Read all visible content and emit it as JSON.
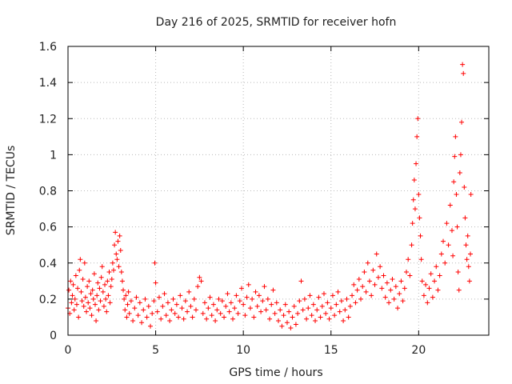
{
  "chart_data": {
    "type": "scatter",
    "title": "Day 216 of 2025, SRMTID for receiver hofn",
    "xlabel": "GPS time / hours",
    "ylabel": "SRMTID / TECUs",
    "xlim": [
      0,
      24
    ],
    "ylim": [
      0,
      1.6
    ],
    "x_ticks": [
      0,
      5,
      10,
      15,
      20
    ],
    "x_tick_labels": [
      "0",
      "5",
      "10",
      "15",
      "20"
    ],
    "y_ticks": [
      0,
      0.2,
      0.4,
      0.6,
      0.8,
      1.0,
      1.2,
      1.4,
      1.6
    ],
    "y_tick_labels": [
      "0",
      "0.2",
      "0.4",
      "0.6",
      "0.8",
      "1",
      "1.2",
      "1.4",
      "1.6"
    ],
    "grid": true,
    "marker": "+",
    "color": "#ff0000",
    "series": [
      {
        "name": "SRMTID",
        "points": [
          [
            0.0,
            0.15
          ],
          [
            0.05,
            0.25
          ],
          [
            0.1,
            0.12
          ],
          [
            0.15,
            0.3
          ],
          [
            0.2,
            0.18
          ],
          [
            0.25,
            0.22
          ],
          [
            0.3,
            0.28
          ],
          [
            0.35,
            0.14
          ],
          [
            0.4,
            0.2
          ],
          [
            0.45,
            0.33
          ],
          [
            0.5,
            0.17
          ],
          [
            0.55,
            0.26
          ],
          [
            0.6,
            0.1
          ],
          [
            0.65,
            0.36
          ],
          [
            0.7,
            0.42
          ],
          [
            0.75,
            0.24
          ],
          [
            0.8,
            0.19
          ],
          [
            0.85,
            0.31
          ],
          [
            0.9,
            0.16
          ],
          [
            0.95,
            0.4
          ],
          [
            1.0,
            0.21
          ],
          [
            1.05,
            0.13
          ],
          [
            1.1,
            0.27
          ],
          [
            1.15,
            0.18
          ],
          [
            1.2,
            0.3
          ],
          [
            1.25,
            0.15
          ],
          [
            1.3,
            0.23
          ],
          [
            1.35,
            0.11
          ],
          [
            1.4,
            0.25
          ],
          [
            1.45,
            0.2
          ],
          [
            1.5,
            0.34
          ],
          [
            1.55,
            0.17
          ],
          [
            1.6,
            0.08
          ],
          [
            1.65,
            0.22
          ],
          [
            1.7,
            0.29
          ],
          [
            1.75,
            0.14
          ],
          [
            1.8,
            0.26
          ],
          [
            1.85,
            0.19
          ],
          [
            1.9,
            0.32
          ],
          [
            1.95,
            0.38
          ],
          [
            2.0,
            0.24
          ],
          [
            2.05,
            0.16
          ],
          [
            2.1,
            0.28
          ],
          [
            2.15,
            0.2
          ],
          [
            2.2,
            0.13
          ],
          [
            2.25,
            0.3
          ],
          [
            2.3,
            0.22
          ],
          [
            2.35,
            0.35
          ],
          [
            2.4,
            0.18
          ],
          [
            2.45,
            0.27
          ],
          [
            2.5,
            0.31
          ],
          [
            2.55,
            0.4
          ],
          [
            2.6,
            0.36
          ],
          [
            2.65,
            0.5
          ],
          [
            2.7,
            0.57
          ],
          [
            2.75,
            0.45
          ],
          [
            2.8,
            0.42
          ],
          [
            2.85,
            0.52
          ],
          [
            2.9,
            0.38
          ],
          [
            2.95,
            0.55
          ],
          [
            3.0,
            0.47
          ],
          [
            3.05,
            0.35
          ],
          [
            3.1,
            0.3
          ],
          [
            3.15,
            0.25
          ],
          [
            3.2,
            0.2
          ],
          [
            3.25,
            0.14
          ],
          [
            3.3,
            0.22
          ],
          [
            3.35,
            0.1
          ],
          [
            3.4,
            0.17
          ],
          [
            3.45,
            0.24
          ],
          [
            3.5,
            0.12
          ],
          [
            3.6,
            0.19
          ],
          [
            3.7,
            0.08
          ],
          [
            3.8,
            0.15
          ],
          [
            3.9,
            0.21
          ],
          [
            4.0,
            0.11
          ],
          [
            4.1,
            0.18
          ],
          [
            4.2,
            0.07
          ],
          [
            4.3,
            0.14
          ],
          [
            4.4,
            0.2
          ],
          [
            4.5,
            0.1
          ],
          [
            4.6,
            0.16
          ],
          [
            4.7,
            0.05
          ],
          [
            4.8,
            0.12
          ],
          [
            4.9,
            0.19
          ],
          [
            4.95,
            0.4
          ],
          [
            5.0,
            0.29
          ],
          [
            5.1,
            0.13
          ],
          [
            5.2,
            0.21
          ],
          [
            5.3,
            0.09
          ],
          [
            5.4,
            0.16
          ],
          [
            5.5,
            0.23
          ],
          [
            5.6,
            0.11
          ],
          [
            5.7,
            0.18
          ],
          [
            5.8,
            0.08
          ],
          [
            5.9,
            0.14
          ],
          [
            6.0,
            0.2
          ],
          [
            6.1,
            0.12
          ],
          [
            6.2,
            0.17
          ],
          [
            6.3,
            0.1
          ],
          [
            6.4,
            0.22
          ],
          [
            6.5,
            0.15
          ],
          [
            6.6,
            0.09
          ],
          [
            6.7,
            0.19
          ],
          [
            6.8,
            0.13
          ],
          [
            6.9,
            0.24
          ],
          [
            7.0,
            0.16
          ],
          [
            7.1,
            0.1
          ],
          [
            7.2,
            0.2
          ],
          [
            7.3,
            0.14
          ],
          [
            7.4,
            0.27
          ],
          [
            7.5,
            0.32
          ],
          [
            7.6,
            0.3
          ],
          [
            7.7,
            0.12
          ],
          [
            7.8,
            0.18
          ],
          [
            7.9,
            0.09
          ],
          [
            8.0,
            0.15
          ],
          [
            8.1,
            0.21
          ],
          [
            8.2,
            0.11
          ],
          [
            8.3,
            0.17
          ],
          [
            8.4,
            0.08
          ],
          [
            8.5,
            0.14
          ],
          [
            8.6,
            0.2
          ],
          [
            8.7,
            0.12
          ],
          [
            8.8,
            0.19
          ],
          [
            8.9,
            0.1
          ],
          [
            9.0,
            0.16
          ],
          [
            9.1,
            0.23
          ],
          [
            9.2,
            0.13
          ],
          [
            9.3,
            0.18
          ],
          [
            9.4,
            0.09
          ],
          [
            9.5,
            0.15
          ],
          [
            9.6,
            0.22
          ],
          [
            9.7,
            0.12
          ],
          [
            9.8,
            0.19
          ],
          [
            9.9,
            0.26
          ],
          [
            10.0,
            0.17
          ],
          [
            10.1,
            0.11
          ],
          [
            10.2,
            0.21
          ],
          [
            10.3,
            0.28
          ],
          [
            10.4,
            0.15
          ],
          [
            10.5,
            0.2
          ],
          [
            10.6,
            0.1
          ],
          [
            10.7,
            0.24
          ],
          [
            10.8,
            0.16
          ],
          [
            10.9,
            0.22
          ],
          [
            11.0,
            0.13
          ],
          [
            11.1,
            0.19
          ],
          [
            11.2,
            0.27
          ],
          [
            11.3,
            0.14
          ],
          [
            11.4,
            0.2
          ],
          [
            11.5,
            0.09
          ],
          [
            11.6,
            0.17
          ],
          [
            11.7,
            0.25
          ],
          [
            11.8,
            0.12
          ],
          [
            11.9,
            0.18
          ],
          [
            12.0,
            0.08
          ],
          [
            12.1,
            0.14
          ],
          [
            12.2,
            0.05
          ],
          [
            12.3,
            0.11
          ],
          [
            12.4,
            0.17
          ],
          [
            12.5,
            0.07
          ],
          [
            12.6,
            0.13
          ],
          [
            12.7,
            0.04
          ],
          [
            12.8,
            0.1
          ],
          [
            12.9,
            0.16
          ],
          [
            13.0,
            0.06
          ],
          [
            13.1,
            0.12
          ],
          [
            13.2,
            0.19
          ],
          [
            13.3,
            0.3
          ],
          [
            13.4,
            0.14
          ],
          [
            13.5,
            0.2
          ],
          [
            13.6,
            0.09
          ],
          [
            13.7,
            0.15
          ],
          [
            13.8,
            0.22
          ],
          [
            13.9,
            0.11
          ],
          [
            14.0,
            0.17
          ],
          [
            14.1,
            0.08
          ],
          [
            14.2,
            0.14
          ],
          [
            14.3,
            0.21
          ],
          [
            14.4,
            0.1
          ],
          [
            14.5,
            0.16
          ],
          [
            14.6,
            0.23
          ],
          [
            14.7,
            0.12
          ],
          [
            14.8,
            0.18
          ],
          [
            14.9,
            0.09
          ],
          [
            15.0,
            0.15
          ],
          [
            15.1,
            0.22
          ],
          [
            15.2,
            0.11
          ],
          [
            15.3,
            0.17
          ],
          [
            15.4,
            0.24
          ],
          [
            15.5,
            0.13
          ],
          [
            15.6,
            0.19
          ],
          [
            15.7,
            0.08
          ],
          [
            15.8,
            0.14
          ],
          [
            15.9,
            0.2
          ],
          [
            16.0,
            0.1
          ],
          [
            16.1,
            0.16
          ],
          [
            16.2,
            0.22
          ],
          [
            16.3,
            0.28
          ],
          [
            16.4,
            0.18
          ],
          [
            16.5,
            0.25
          ],
          [
            16.6,
            0.31
          ],
          [
            16.7,
            0.2
          ],
          [
            16.8,
            0.27
          ],
          [
            16.9,
            0.35
          ],
          [
            17.0,
            0.24
          ],
          [
            17.1,
            0.4
          ],
          [
            17.2,
            0.3
          ],
          [
            17.3,
            0.22
          ],
          [
            17.4,
            0.36
          ],
          [
            17.5,
            0.28
          ],
          [
            17.6,
            0.45
          ],
          [
            17.7,
            0.32
          ],
          [
            17.8,
            0.38
          ],
          [
            17.9,
            0.26
          ],
          [
            18.0,
            0.33
          ],
          [
            18.1,
            0.21
          ],
          [
            18.2,
            0.29
          ],
          [
            18.3,
            0.18
          ],
          [
            18.4,
            0.25
          ],
          [
            18.5,
            0.31
          ],
          [
            18.6,
            0.2
          ],
          [
            18.7,
            0.27
          ],
          [
            18.8,
            0.15
          ],
          [
            18.9,
            0.23
          ],
          [
            19.0,
            0.3
          ],
          [
            19.1,
            0.19
          ],
          [
            19.2,
            0.26
          ],
          [
            19.3,
            0.35
          ],
          [
            19.4,
            0.42
          ],
          [
            19.5,
            0.33
          ],
          [
            19.6,
            0.5
          ],
          [
            19.65,
            0.62
          ],
          [
            19.7,
            0.75
          ],
          [
            19.75,
            0.86
          ],
          [
            19.8,
            0.7
          ],
          [
            19.85,
            0.95
          ],
          [
            19.9,
            1.1
          ],
          [
            19.95,
            1.2
          ],
          [
            20.0,
            0.78
          ],
          [
            20.05,
            0.65
          ],
          [
            20.1,
            0.55
          ],
          [
            20.15,
            0.42
          ],
          [
            20.2,
            0.3
          ],
          [
            20.3,
            0.22
          ],
          [
            20.4,
            0.28
          ],
          [
            20.5,
            0.18
          ],
          [
            20.6,
            0.26
          ],
          [
            20.7,
            0.34
          ],
          [
            20.8,
            0.21
          ],
          [
            20.9,
            0.3
          ],
          [
            21.0,
            0.38
          ],
          [
            21.1,
            0.25
          ],
          [
            21.2,
            0.33
          ],
          [
            21.3,
            0.45
          ],
          [
            21.4,
            0.52
          ],
          [
            21.5,
            0.4
          ],
          [
            21.6,
            0.62
          ],
          [
            21.7,
            0.5
          ],
          [
            21.8,
            0.72
          ],
          [
            21.9,
            0.58
          ],
          [
            21.95,
            0.44
          ],
          [
            22.0,
            0.85
          ],
          [
            22.05,
            0.99
          ],
          [
            22.1,
            1.1
          ],
          [
            22.15,
            0.78
          ],
          [
            22.2,
            0.6
          ],
          [
            22.25,
            0.35
          ],
          [
            22.3,
            0.25
          ],
          [
            22.35,
            0.9
          ],
          [
            22.4,
            1.0
          ],
          [
            22.45,
            1.18
          ],
          [
            22.5,
            1.5
          ],
          [
            22.55,
            1.45
          ],
          [
            22.6,
            0.82
          ],
          [
            22.65,
            0.65
          ],
          [
            22.7,
            0.5
          ],
          [
            22.75,
            0.42
          ],
          [
            22.8,
            0.55
          ],
          [
            22.85,
            0.38
          ],
          [
            22.9,
            0.3
          ],
          [
            22.95,
            0.45
          ],
          [
            22.98,
            0.78
          ]
        ]
      }
    ]
  }
}
